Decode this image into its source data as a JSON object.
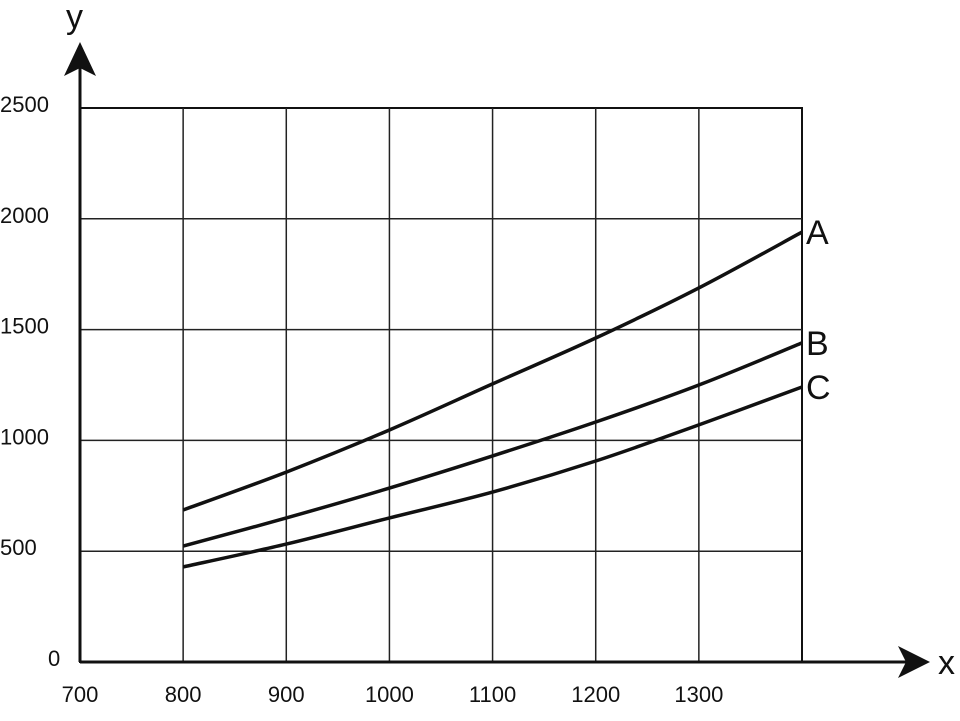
{
  "chart_data": {
    "type": "line",
    "title": "",
    "xlabel": "x",
    "ylabel": "y",
    "xlim": [
      700,
      1400
    ],
    "ylim": [
      0,
      2500
    ],
    "x_ticks": [
      700,
      800,
      900,
      1000,
      1100,
      1200,
      1300
    ],
    "y_ticks": [
      0,
      500,
      1000,
      1500,
      2000,
      2500
    ],
    "grid": true,
    "x": [
      800,
      900,
      1000,
      1100,
      1200,
      1300,
      1400
    ],
    "series": [
      {
        "name": "A",
        "values": [
          686,
          857,
          1047,
          1255,
          1462,
          1688,
          1940
        ]
      },
      {
        "name": "B",
        "values": [
          523,
          650,
          785,
          930,
          1083,
          1250,
          1440
        ]
      },
      {
        "name": "C",
        "values": [
          429,
          532,
          650,
          767,
          907,
          1070,
          1241
        ]
      }
    ],
    "line_color": "#111111"
  }
}
